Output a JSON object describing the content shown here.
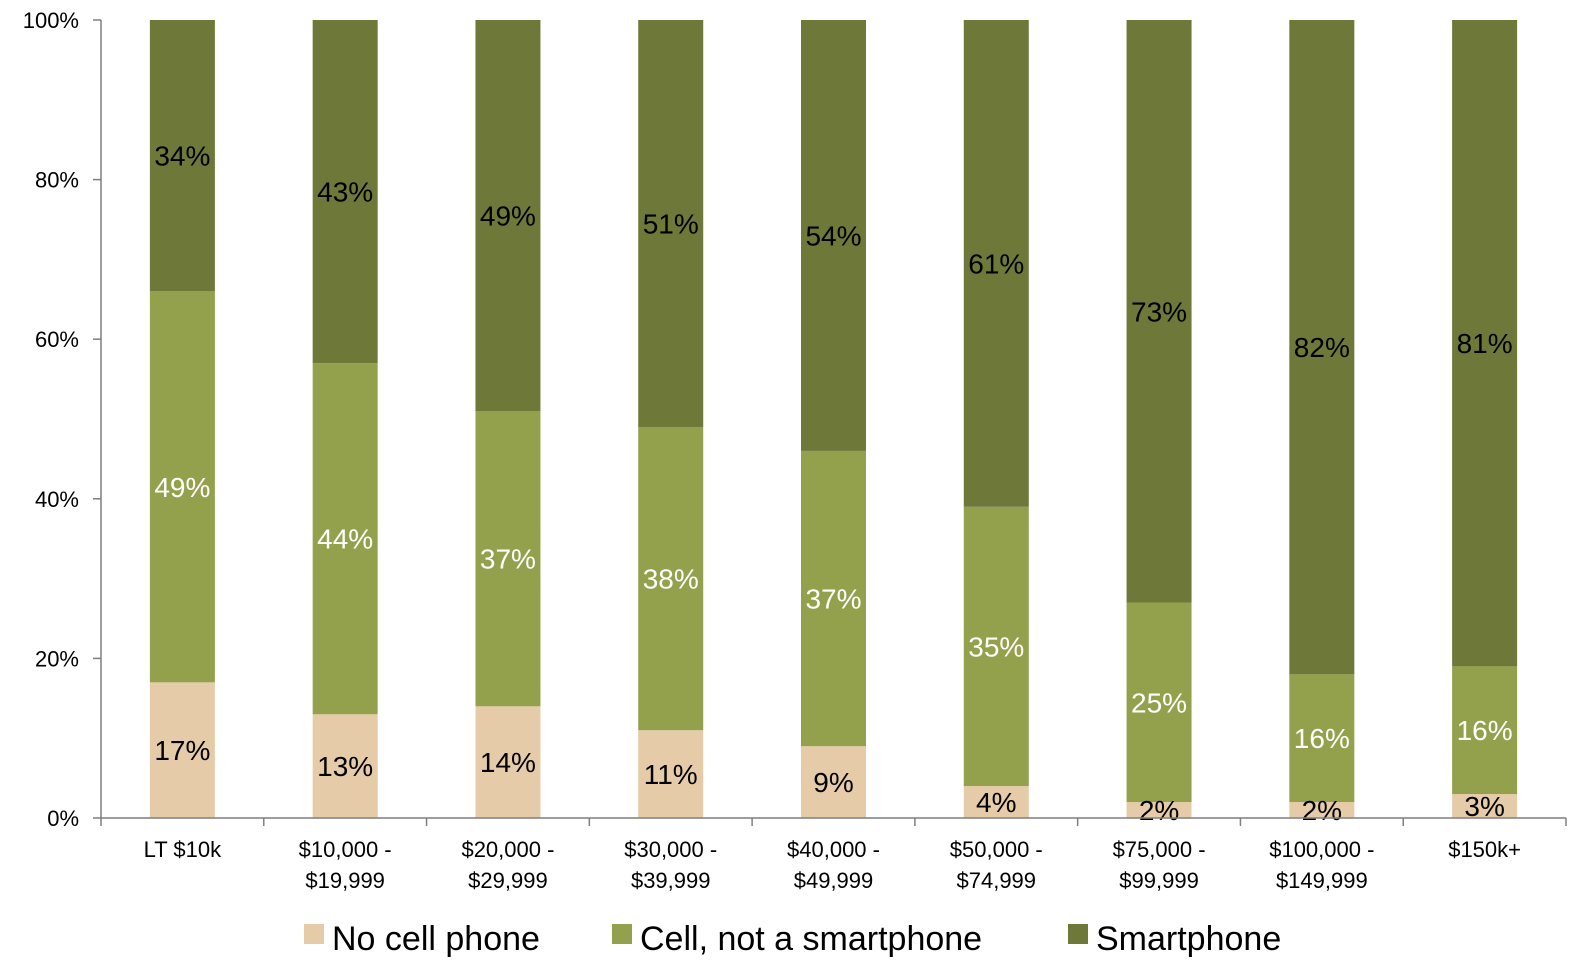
{
  "chart_data": {
    "type": "bar",
    "stacked": true,
    "categories": [
      [
        "LT $10k"
      ],
      [
        "$10,000 -",
        "$19,999"
      ],
      [
        "$20,000 -",
        "$29,999"
      ],
      [
        "$30,000 -",
        "$39,999"
      ],
      [
        "$40,000 -",
        "$49,999"
      ],
      [
        "$50,000 -",
        "$74,999"
      ],
      [
        "$75,000 -",
        "$99,999"
      ],
      [
        "$100,000 -",
        "$149,999"
      ],
      [
        "$150k+"
      ]
    ],
    "series": [
      {
        "name": "No cell phone",
        "color": "#E6CBA8",
        "label_color": "#000000",
        "values": [
          17,
          13,
          14,
          11,
          9,
          4,
          2,
          2,
          3
        ],
        "labels": [
          "17%",
          "13%",
          "14%",
          "11%",
          "9%",
          "4%",
          "2%",
          "2%",
          "3%"
        ]
      },
      {
        "name": "Cell, not a smartphone",
        "color": "#94A14C",
        "label_color": "#FFFFFF",
        "values": [
          49,
          44,
          37,
          38,
          37,
          35,
          25,
          16,
          16
        ],
        "labels": [
          "49%",
          "44%",
          "37%",
          "38%",
          "37%",
          "35%",
          "25%",
          "16%",
          "16%"
        ]
      },
      {
        "name": "Smartphone",
        "color": "#6E7838",
        "label_color": "#000000",
        "values": [
          34,
          43,
          49,
          51,
          54,
          61,
          73,
          82,
          81
        ],
        "labels": [
          "34%",
          "43%",
          "49%",
          "51%",
          "54%",
          "61%",
          "73%",
          "82%",
          "81%"
        ]
      }
    ],
    "ylim": [
      0,
      100
    ],
    "y_ticks": [
      0,
      20,
      40,
      60,
      80,
      100
    ],
    "y_tick_labels": [
      "0%",
      "20%",
      "40%",
      "60%",
      "80%",
      "100%"
    ],
    "grid": false,
    "legend_position": "bottom"
  }
}
